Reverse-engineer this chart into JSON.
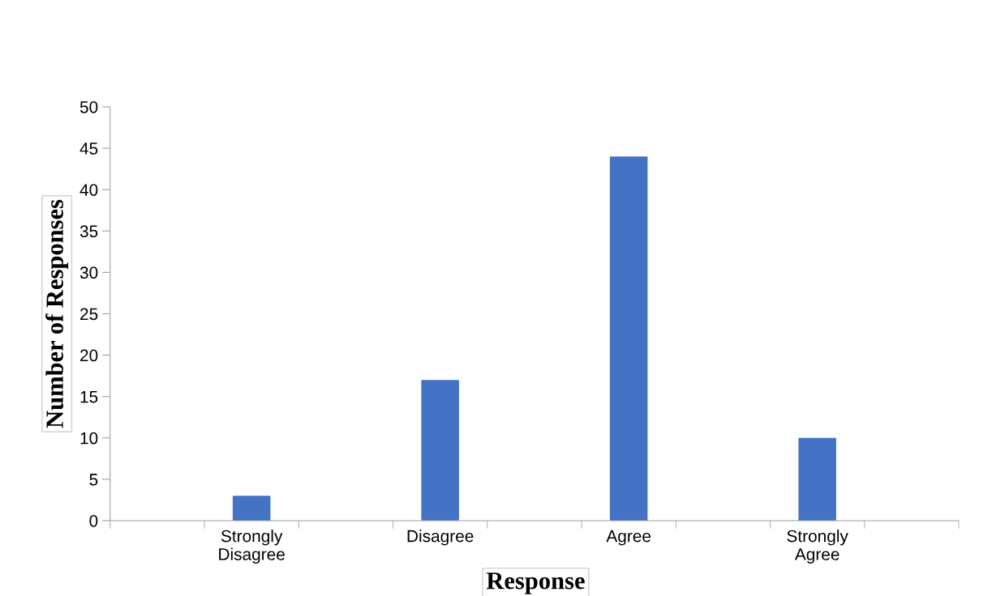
{
  "chart_data": {
    "type": "bar",
    "xlabel": "Response",
    "ylabel": "Number of Responses",
    "categories": [
      null,
      "Strongly\nDisagree",
      null,
      "Disagree",
      null,
      "Agree",
      null,
      "Strongly\nAgree",
      null
    ],
    "values": [
      null,
      3,
      null,
      17,
      null,
      44,
      null,
      10,
      null
    ],
    "color": "#4472c4",
    "ylim": [
      0,
      50
    ],
    "yticks": [
      0,
      5,
      10,
      15,
      20,
      25,
      30,
      35,
      40,
      45,
      50
    ],
    "grid": false,
    "legend": false
  }
}
